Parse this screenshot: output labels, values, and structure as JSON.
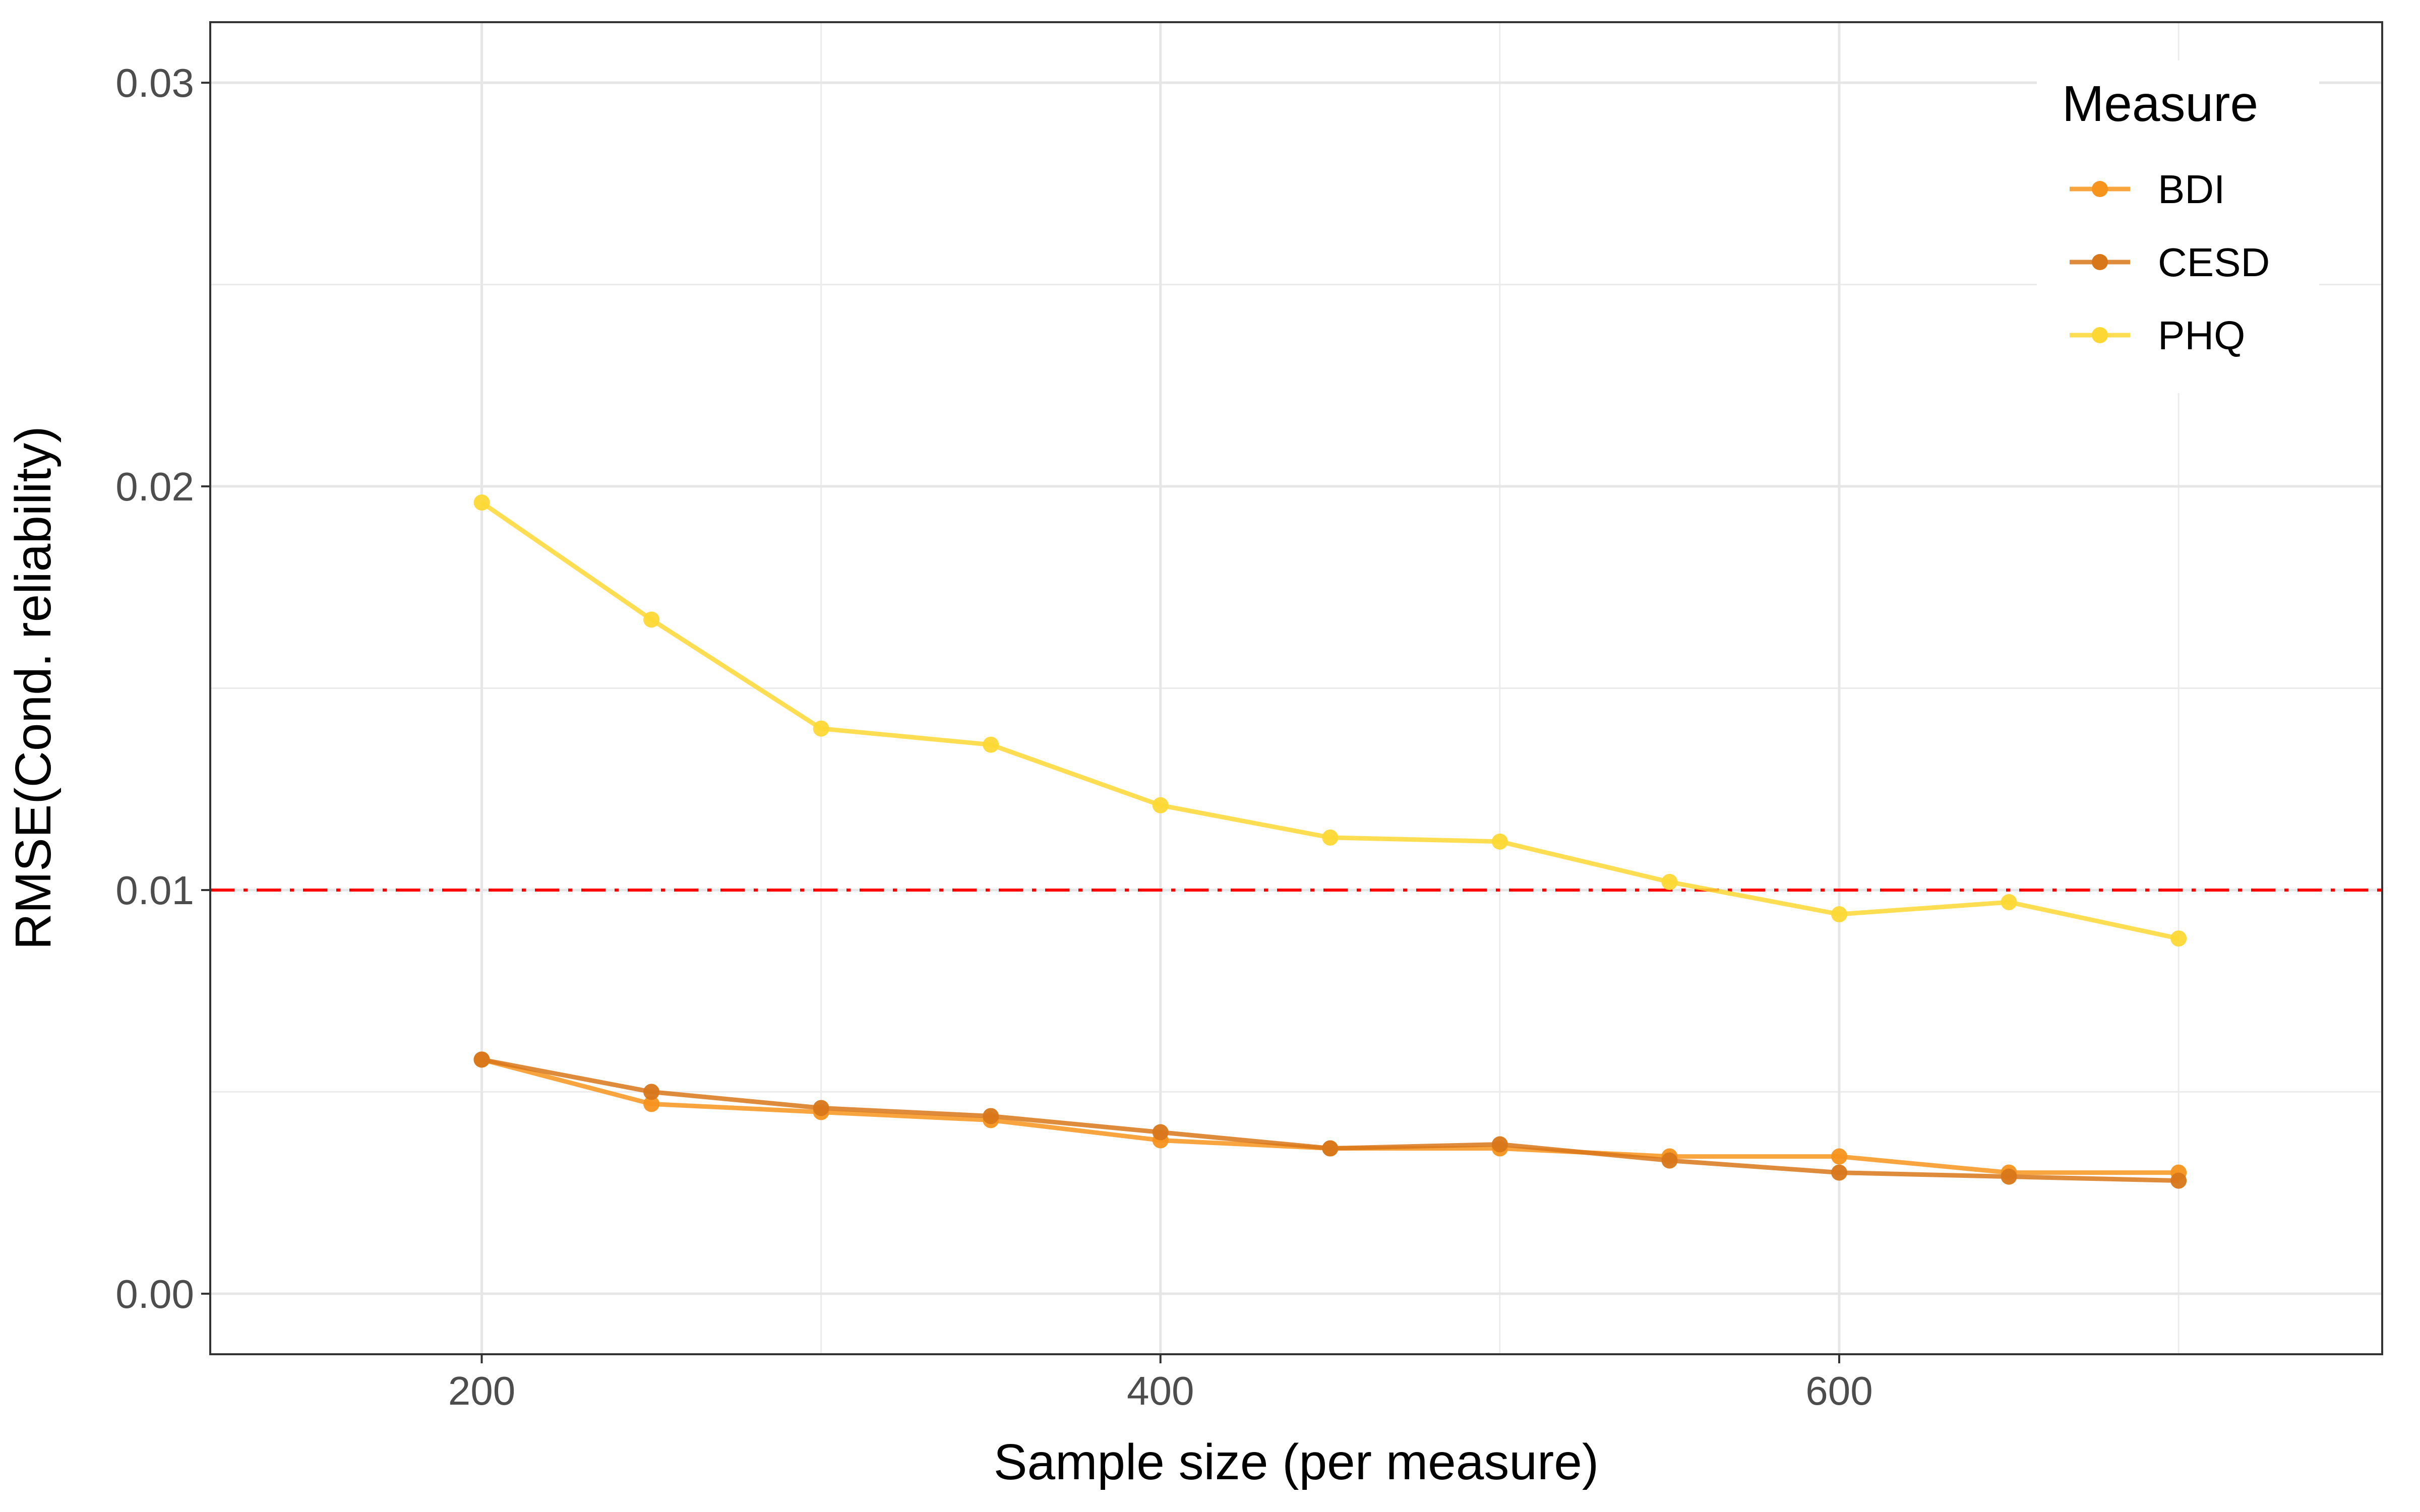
{
  "chart_data": {
    "type": "line",
    "xlabel": "Sample size (per measure)",
    "ylabel": "RMSE(Cond. reliability)",
    "xlim": [
      120,
      760
    ],
    "ylim": [
      -0.0015,
      0.0315
    ],
    "x_ticks": [
      200,
      400,
      600
    ],
    "x_tick_labels": [
      "200",
      "400",
      "600"
    ],
    "x_minor_ticks": [
      300,
      500,
      700
    ],
    "y_ticks": [
      0.0,
      0.01,
      0.02,
      0.03
    ],
    "y_tick_labels": [
      "0.00",
      "0.01",
      "0.02",
      "0.03"
    ],
    "y_minor_ticks": [
      0.005,
      0.015,
      0.025
    ],
    "grid": true,
    "x": [
      200,
      250,
      300,
      350,
      400,
      450,
      500,
      550,
      600,
      650,
      700
    ],
    "series": [
      {
        "name": "BDI",
        "color": "#F7941D",
        "values": [
          0.0058,
          0.0047,
          0.0045,
          0.0043,
          0.0038,
          0.0036,
          0.0036,
          0.0034,
          0.0034,
          0.003,
          0.003
        ]
      },
      {
        "name": "CESD",
        "color": "#D8771A",
        "values": [
          0.0058,
          0.005,
          0.0046,
          0.0044,
          0.004,
          0.0036,
          0.0037,
          0.0033,
          0.003,
          0.0029,
          0.0028
        ]
      },
      {
        "name": "PHQ",
        "color": "#FDD835",
        "values": [
          0.0196,
          0.0167,
          0.014,
          0.0136,
          0.0121,
          0.0113,
          0.0112,
          0.0102,
          0.0094,
          0.0097,
          0.0088
        ]
      }
    ],
    "reference_line": {
      "y": 0.01,
      "color": "#FF0000",
      "style": "dashdot"
    },
    "legend": {
      "title": "Measure",
      "placement": "top-right",
      "entries": [
        "BDI",
        "CESD",
        "PHQ"
      ]
    }
  }
}
